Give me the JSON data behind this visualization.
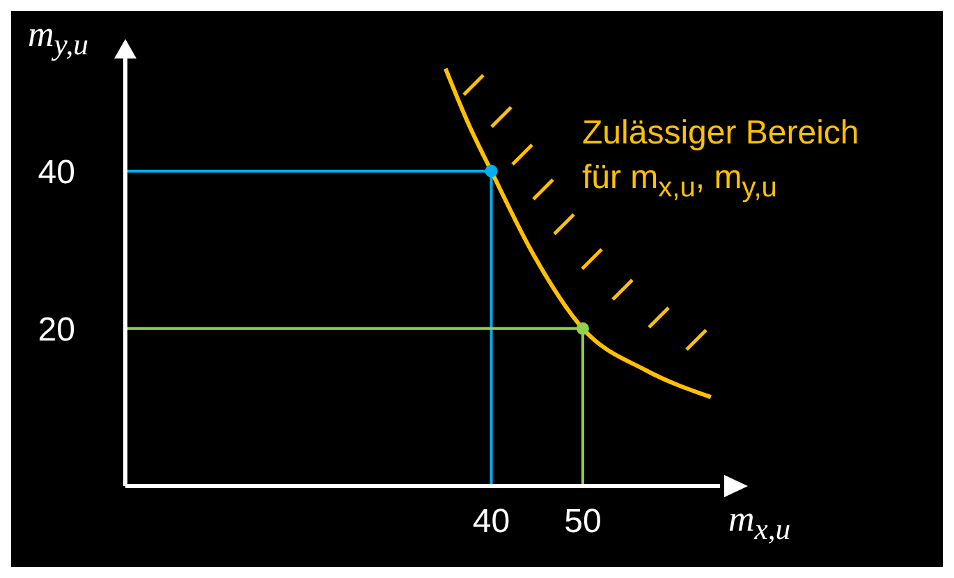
{
  "chart_data": {
    "type": "line",
    "xlabel": "m$_{x,u}$",
    "ylabel": "m$_{y,u}$",
    "xlim": [
      0,
      65
    ],
    "ylim": [
      0,
      55
    ],
    "xticks": [
      40,
      50
    ],
    "yticks": [
      20,
      40
    ],
    "grid": false,
    "annotations": [
      "Zulässiger Bereich für m$_{x,u}$, m$_{y,u}$"
    ],
    "series": [
      {
        "marker": "none",
        "color": "#ffc000",
        "x": [
          35,
          37.5,
          40,
          44.6,
          50,
          56.9,
          64
        ],
        "values": [
          53,
          46,
          40,
          29.4,
          20,
          14.7,
          11.3
        ]
      },
      {
        "type": "scatter",
        "marker": "circle",
        "x": [
          40,
          50
        ],
        "values": [
          40,
          20
        ],
        "colors": [
          "#00b0f0",
          "#92d050"
        ]
      }
    ],
    "ref_lines": [
      {
        "axis": "x",
        "value": 40,
        "color": "#00b0f0"
      },
      {
        "axis": "y",
        "value": 40,
        "color": "#00b0f0"
      },
      {
        "axis": "x",
        "value": 50,
        "color": "#92d050"
      },
      {
        "axis": "y",
        "value": 20,
        "color": "#92d050"
      }
    ]
  }
}
